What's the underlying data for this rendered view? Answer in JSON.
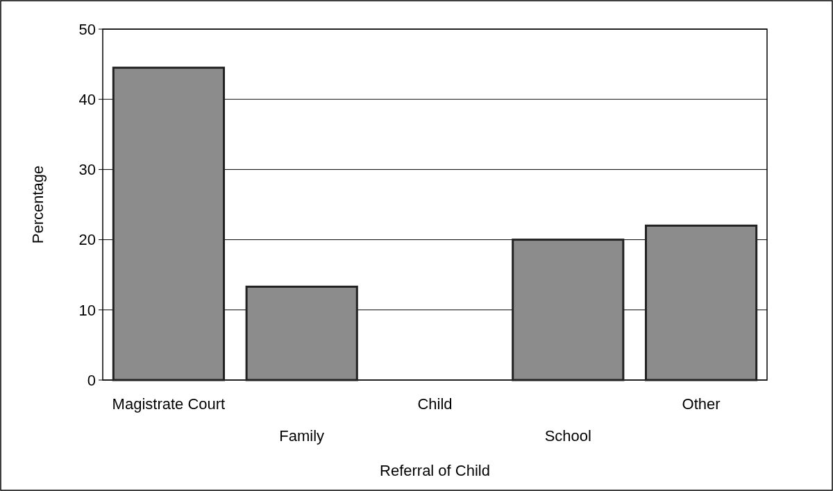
{
  "chart_data": {
    "type": "bar",
    "xlabel": "Referral of Child",
    "ylabel": "Percentage",
    "categories": [
      "Magistrate Court",
      "Family",
      "Child",
      "School",
      "Other"
    ],
    "values": [
      44.5,
      13.3,
      0,
      20,
      22
    ],
    "color": "#8c8c8c",
    "ylim": [
      0,
      50
    ],
    "yticks": [
      0,
      10,
      20,
      30,
      40,
      50
    ],
    "grid": "y"
  }
}
